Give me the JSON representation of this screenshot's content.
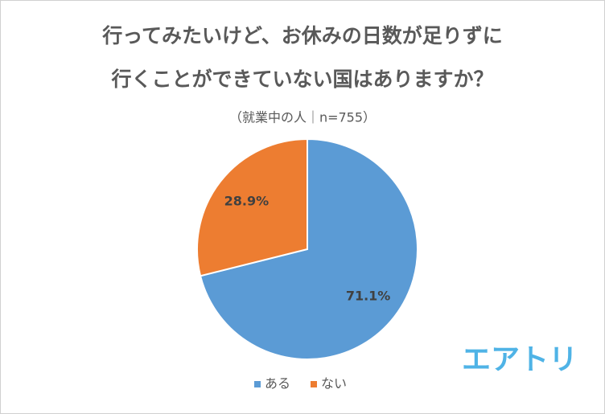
{
  "chart_data": {
    "type": "pie",
    "title": [
      "行ってみたいけど、お休みの日数が足りずに",
      "行くことができていない国はありますか？"
    ],
    "subtitle": "（就業中の人｜n=755）",
    "categories": [
      "ある",
      "ない"
    ],
    "values": [
      71.1,
      28.9
    ],
    "value_labels": [
      "71.1%",
      "28.9%"
    ],
    "colors": [
      "#5b9bd5",
      "#ed7d31"
    ],
    "legend": "bottom"
  },
  "logo": "エアトリ"
}
